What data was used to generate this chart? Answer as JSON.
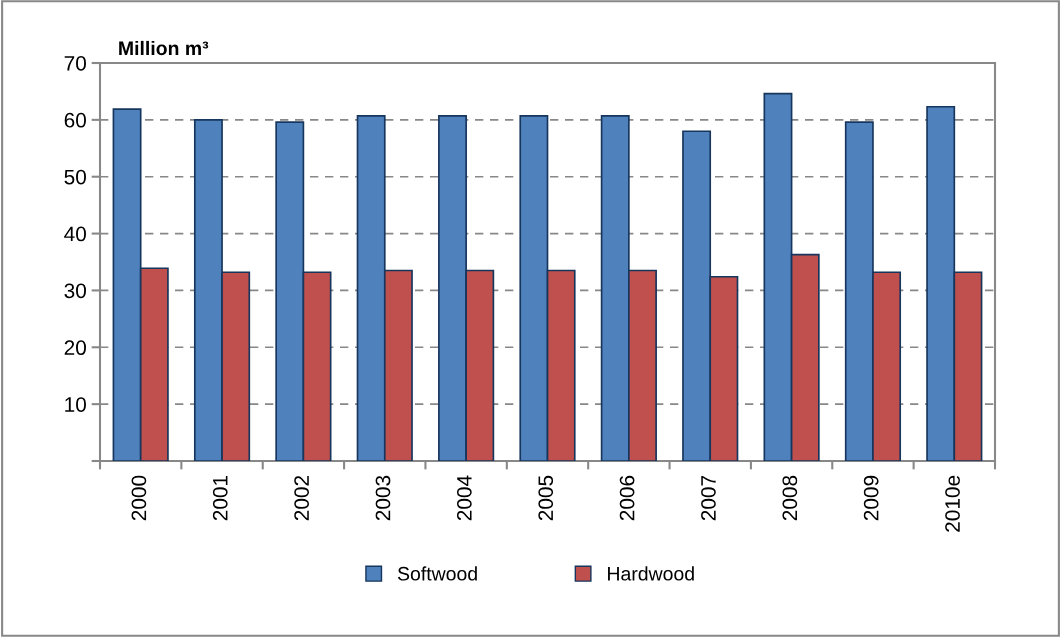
{
  "chart_data": {
    "type": "bar",
    "ylabel": "Million m³",
    "categories": [
      "2000",
      "2001",
      "2002",
      "2003",
      "2004",
      "2005",
      "2006",
      "2007",
      "2008",
      "2009",
      "2010e"
    ],
    "series": [
      {
        "name": "Softwood",
        "color": "#4f81bd",
        "values": [
          61.9,
          60.0,
          59.6,
          60.7,
          60.7,
          60.7,
          60.7,
          58.0,
          64.6,
          59.6,
          62.3
        ]
      },
      {
        "name": "Hardwood",
        "color": "#c0504d",
        "values": [
          33.9,
          33.2,
          33.2,
          33.5,
          33.5,
          33.5,
          33.5,
          32.4,
          36.3,
          33.2,
          33.2
        ]
      }
    ],
    "ylim": [
      0,
      70
    ],
    "yticks": [
      {
        "value": 0,
        "label": null
      },
      10,
      20,
      30,
      40,
      50,
      60,
      70
    ],
    "grid": "y",
    "legend": "bottom"
  }
}
